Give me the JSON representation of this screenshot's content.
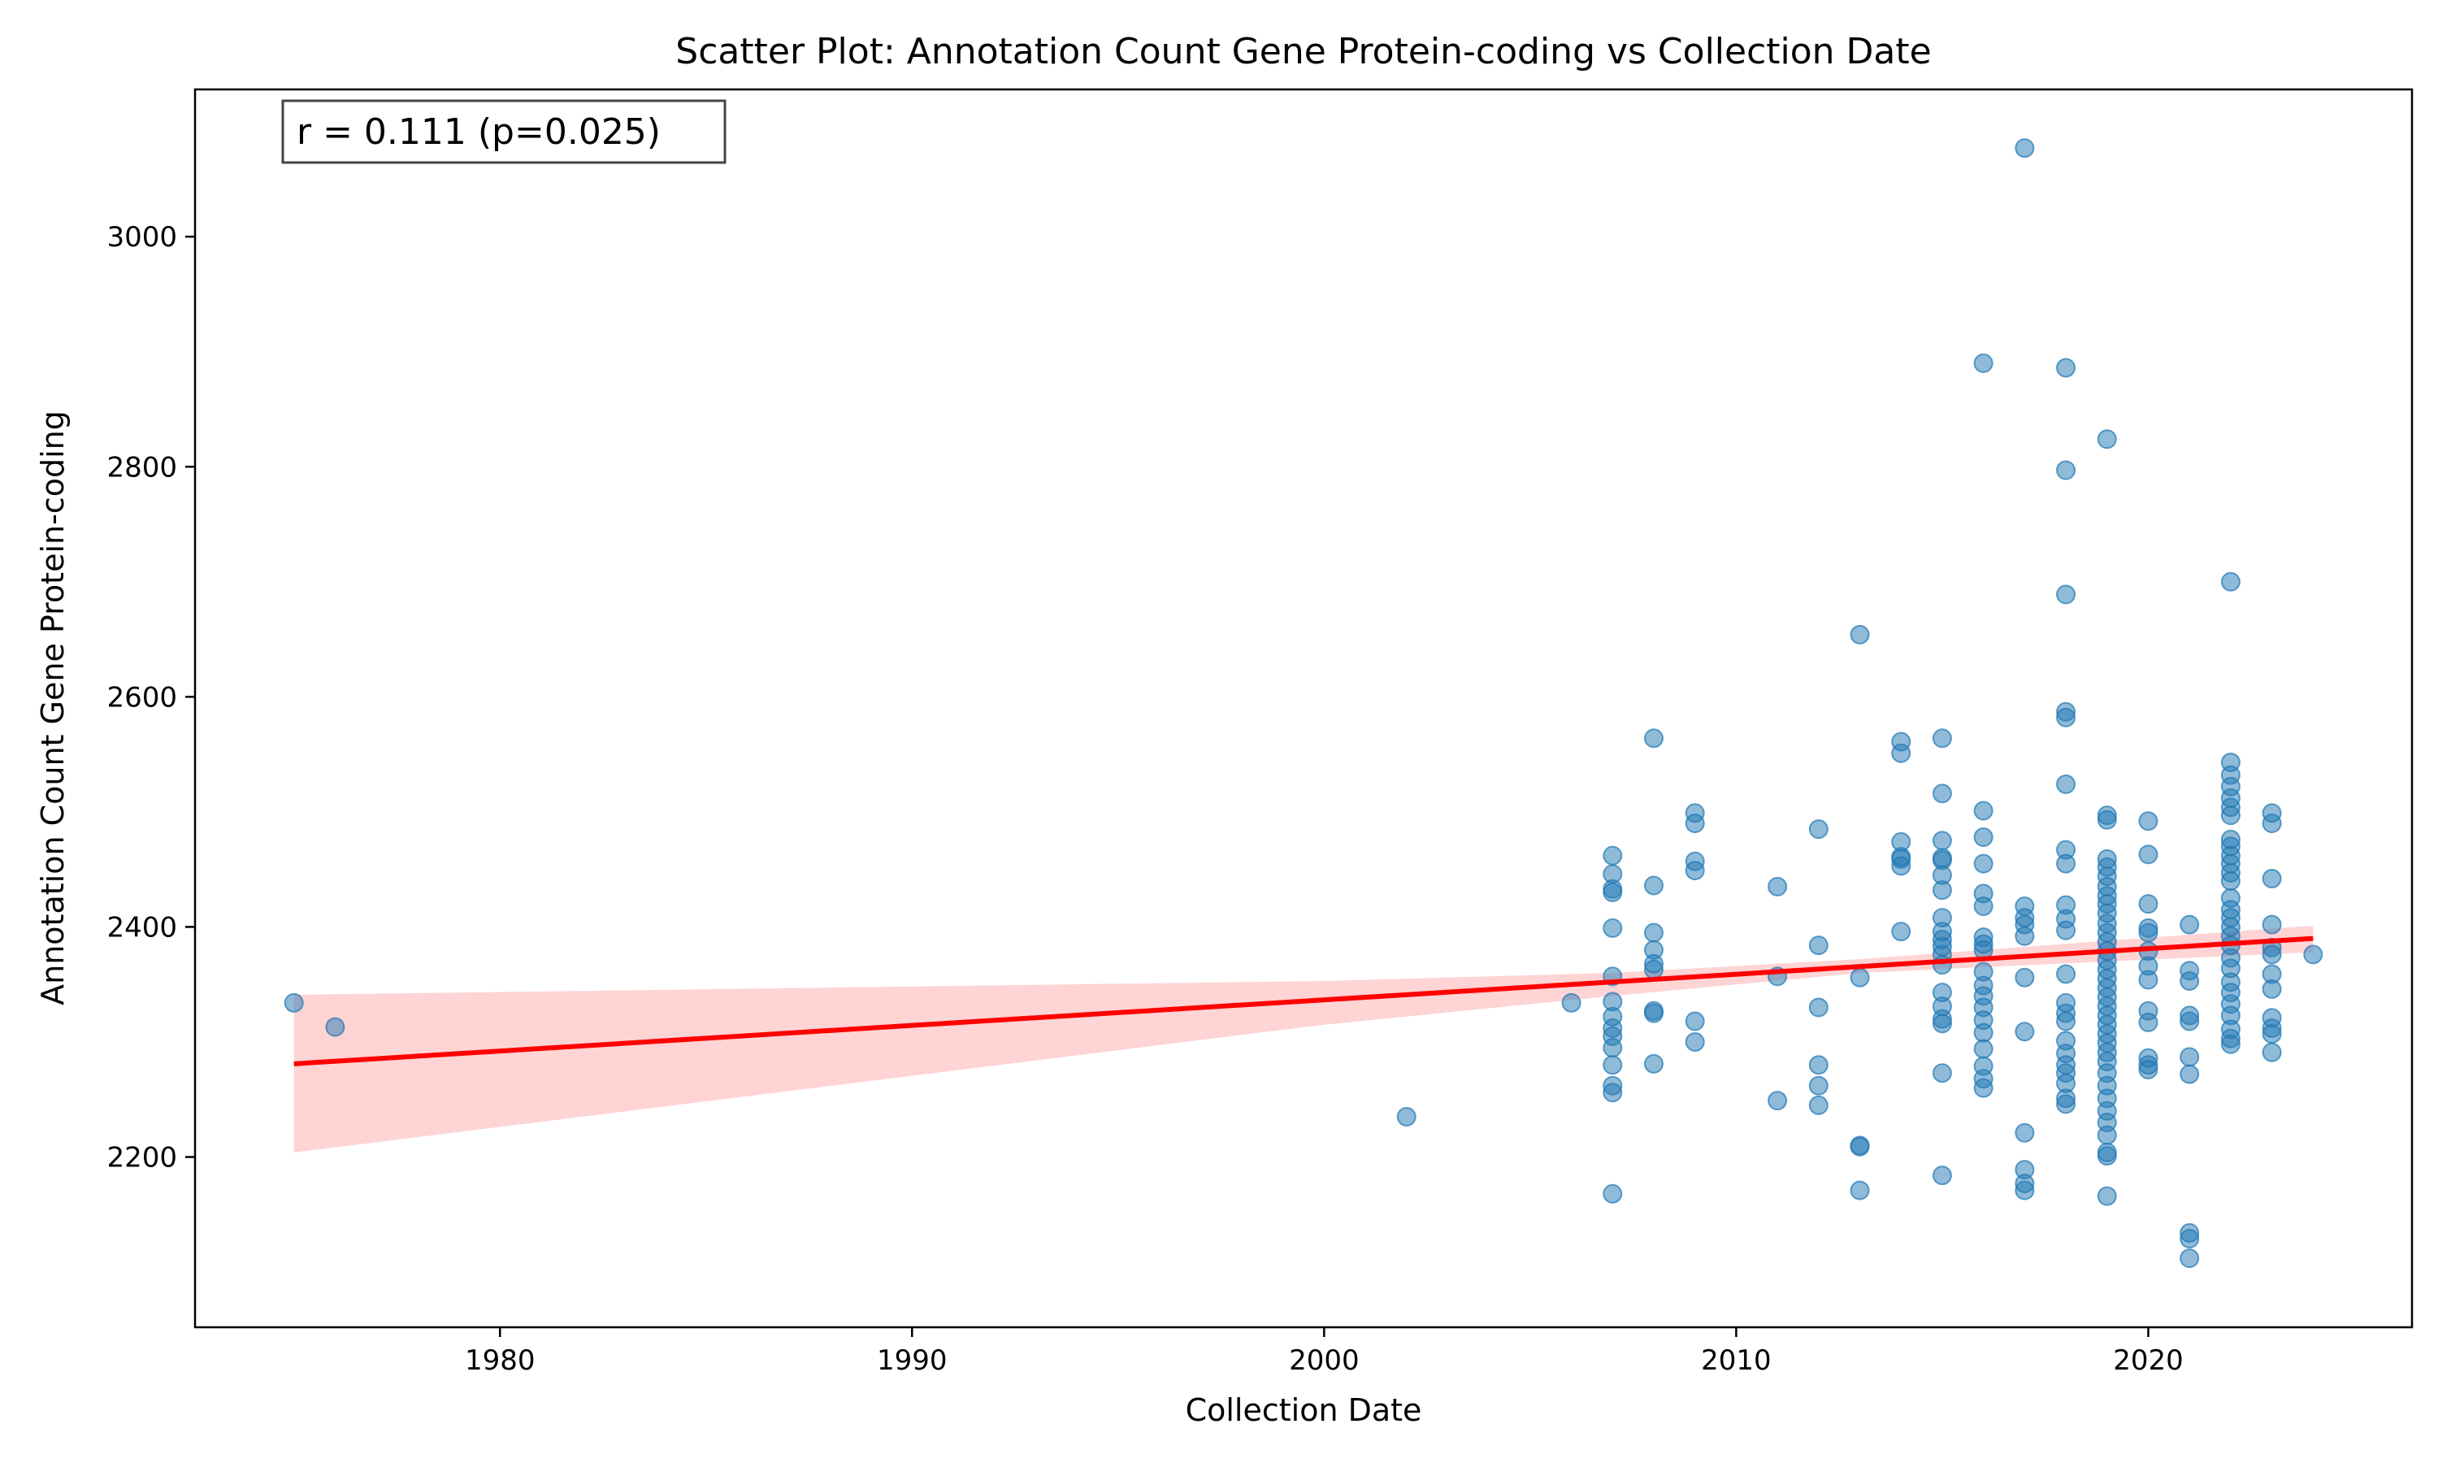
{
  "chart_data": {
    "type": "scatter",
    "title": "Scatter Plot: Annotation Count Gene Protein-coding vs Collection Date",
    "xlabel": "Collection Date",
    "ylabel": "Annotation Count Gene Protein-coding",
    "xlim": [
      1972.6,
      2026.4
    ],
    "ylim": [
      2052,
      3128
    ],
    "xticks": [
      1980,
      1990,
      2000,
      2010,
      2020
    ],
    "yticks": [
      2200,
      2400,
      2600,
      2800,
      3000
    ],
    "grid": false,
    "annotation": "r = 0.111 (p=0.025)",
    "point_color": "#1f77b4",
    "regression_color": "#ff0000",
    "confidence_color": "#ffcccc",
    "regression_line": {
      "x": [
        1975,
        2024
      ],
      "y": [
        2281,
        2390
      ]
    },
    "confidence_band": {
      "x": [
        1975,
        2000,
        2007,
        2013,
        2019,
        2024
      ],
      "lower": [
        2204,
        2315,
        2340,
        2360,
        2370,
        2378
      ],
      "upper": [
        2341,
        2353,
        2360,
        2372,
        2388,
        2401
      ]
    },
    "points": [
      {
        "x": 1975,
        "y": 2334
      },
      {
        "x": 1976,
        "y": 2313
      },
      {
        "x": 2002,
        "y": 2235
      },
      {
        "x": 2006,
        "y": 2334
      },
      {
        "x": 2007,
        "y": 2462
      },
      {
        "x": 2007,
        "y": 2446
      },
      {
        "x": 2007,
        "y": 2433
      },
      {
        "x": 2007,
        "y": 2430
      },
      {
        "x": 2007,
        "y": 2399
      },
      {
        "x": 2007,
        "y": 2357
      },
      {
        "x": 2007,
        "y": 2335
      },
      {
        "x": 2007,
        "y": 2322
      },
      {
        "x": 2007,
        "y": 2312
      },
      {
        "x": 2007,
        "y": 2305
      },
      {
        "x": 2007,
        "y": 2295
      },
      {
        "x": 2007,
        "y": 2280
      },
      {
        "x": 2007,
        "y": 2262
      },
      {
        "x": 2007,
        "y": 2256
      },
      {
        "x": 2007,
        "y": 2168
      },
      {
        "x": 2008,
        "y": 2564
      },
      {
        "x": 2008,
        "y": 2436
      },
      {
        "x": 2008,
        "y": 2395
      },
      {
        "x": 2008,
        "y": 2380
      },
      {
        "x": 2008,
        "y": 2368
      },
      {
        "x": 2008,
        "y": 2363
      },
      {
        "x": 2008,
        "y": 2327
      },
      {
        "x": 2008,
        "y": 2325
      },
      {
        "x": 2008,
        "y": 2281
      },
      {
        "x": 2009,
        "y": 2499
      },
      {
        "x": 2009,
        "y": 2490
      },
      {
        "x": 2009,
        "y": 2457
      },
      {
        "x": 2009,
        "y": 2449
      },
      {
        "x": 2009,
        "y": 2318
      },
      {
        "x": 2009,
        "y": 2300
      },
      {
        "x": 2011,
        "y": 2435
      },
      {
        "x": 2011,
        "y": 2357
      },
      {
        "x": 2011,
        "y": 2249
      },
      {
        "x": 2012,
        "y": 2485
      },
      {
        "x": 2012,
        "y": 2384
      },
      {
        "x": 2012,
        "y": 2330
      },
      {
        "x": 2012,
        "y": 2280
      },
      {
        "x": 2012,
        "y": 2262
      },
      {
        "x": 2012,
        "y": 2245
      },
      {
        "x": 2013,
        "y": 2654
      },
      {
        "x": 2013,
        "y": 2356
      },
      {
        "x": 2013,
        "y": 2210
      },
      {
        "x": 2013,
        "y": 2209
      },
      {
        "x": 2013,
        "y": 2171
      },
      {
        "x": 2014,
        "y": 2561
      },
      {
        "x": 2014,
        "y": 2551
      },
      {
        "x": 2014,
        "y": 2474
      },
      {
        "x": 2014,
        "y": 2461
      },
      {
        "x": 2014,
        "y": 2459
      },
      {
        "x": 2014,
        "y": 2453
      },
      {
        "x": 2014,
        "y": 2396
      },
      {
        "x": 2015,
        "y": 2564
      },
      {
        "x": 2015,
        "y": 2516
      },
      {
        "x": 2015,
        "y": 2475
      },
      {
        "x": 2015,
        "y": 2460
      },
      {
        "x": 2015,
        "y": 2458
      },
      {
        "x": 2015,
        "y": 2445
      },
      {
        "x": 2015,
        "y": 2432
      },
      {
        "x": 2015,
        "y": 2408
      },
      {
        "x": 2015,
        "y": 2396
      },
      {
        "x": 2015,
        "y": 2389
      },
      {
        "x": 2015,
        "y": 2383
      },
      {
        "x": 2015,
        "y": 2376
      },
      {
        "x": 2015,
        "y": 2367
      },
      {
        "x": 2015,
        "y": 2343
      },
      {
        "x": 2015,
        "y": 2331
      },
      {
        "x": 2015,
        "y": 2320
      },
      {
        "x": 2015,
        "y": 2316
      },
      {
        "x": 2015,
        "y": 2273
      },
      {
        "x": 2015,
        "y": 2184
      },
      {
        "x": 2016,
        "y": 2890
      },
      {
        "x": 2016,
        "y": 2501
      },
      {
        "x": 2016,
        "y": 2478
      },
      {
        "x": 2016,
        "y": 2455
      },
      {
        "x": 2016,
        "y": 2429
      },
      {
        "x": 2016,
        "y": 2418
      },
      {
        "x": 2016,
        "y": 2391
      },
      {
        "x": 2016,
        "y": 2385
      },
      {
        "x": 2016,
        "y": 2380
      },
      {
        "x": 2016,
        "y": 2361
      },
      {
        "x": 2016,
        "y": 2349
      },
      {
        "x": 2016,
        "y": 2340
      },
      {
        "x": 2016,
        "y": 2330
      },
      {
        "x": 2016,
        "y": 2319
      },
      {
        "x": 2016,
        "y": 2308
      },
      {
        "x": 2016,
        "y": 2294
      },
      {
        "x": 2016,
        "y": 2279
      },
      {
        "x": 2016,
        "y": 2268
      },
      {
        "x": 2016,
        "y": 2260
      },
      {
        "x": 2017,
        "y": 3077
      },
      {
        "x": 2017,
        "y": 2418
      },
      {
        "x": 2017,
        "y": 2408
      },
      {
        "x": 2017,
        "y": 2402
      },
      {
        "x": 2017,
        "y": 2392
      },
      {
        "x": 2017,
        "y": 2356
      },
      {
        "x": 2017,
        "y": 2309
      },
      {
        "x": 2017,
        "y": 2221
      },
      {
        "x": 2017,
        "y": 2189
      },
      {
        "x": 2017,
        "y": 2177
      },
      {
        "x": 2017,
        "y": 2171
      },
      {
        "x": 2018,
        "y": 2886
      },
      {
        "x": 2018,
        "y": 2797
      },
      {
        "x": 2018,
        "y": 2689
      },
      {
        "x": 2018,
        "y": 2587
      },
      {
        "x": 2018,
        "y": 2582
      },
      {
        "x": 2018,
        "y": 2524
      },
      {
        "x": 2018,
        "y": 2467
      },
      {
        "x": 2018,
        "y": 2455
      },
      {
        "x": 2018,
        "y": 2419
      },
      {
        "x": 2018,
        "y": 2407
      },
      {
        "x": 2018,
        "y": 2397
      },
      {
        "x": 2018,
        "y": 2359
      },
      {
        "x": 2018,
        "y": 2334
      },
      {
        "x": 2018,
        "y": 2325
      },
      {
        "x": 2018,
        "y": 2318
      },
      {
        "x": 2018,
        "y": 2301
      },
      {
        "x": 2018,
        "y": 2290
      },
      {
        "x": 2018,
        "y": 2280
      },
      {
        "x": 2018,
        "y": 2273
      },
      {
        "x": 2018,
        "y": 2264
      },
      {
        "x": 2018,
        "y": 2251
      },
      {
        "x": 2018,
        "y": 2246
      },
      {
        "x": 2019,
        "y": 2824
      },
      {
        "x": 2019,
        "y": 2497
      },
      {
        "x": 2019,
        "y": 2493
      },
      {
        "x": 2019,
        "y": 2459
      },
      {
        "x": 2019,
        "y": 2452
      },
      {
        "x": 2019,
        "y": 2444
      },
      {
        "x": 2019,
        "y": 2435
      },
      {
        "x": 2019,
        "y": 2427
      },
      {
        "x": 2019,
        "y": 2420
      },
      {
        "x": 2019,
        "y": 2412
      },
      {
        "x": 2019,
        "y": 2403
      },
      {
        "x": 2019,
        "y": 2395
      },
      {
        "x": 2019,
        "y": 2387
      },
      {
        "x": 2019,
        "y": 2379
      },
      {
        "x": 2019,
        "y": 2371
      },
      {
        "x": 2019,
        "y": 2363
      },
      {
        "x": 2019,
        "y": 2355
      },
      {
        "x": 2019,
        "y": 2347
      },
      {
        "x": 2019,
        "y": 2339
      },
      {
        "x": 2019,
        "y": 2331
      },
      {
        "x": 2019,
        "y": 2323
      },
      {
        "x": 2019,
        "y": 2315
      },
      {
        "x": 2019,
        "y": 2307
      },
      {
        "x": 2019,
        "y": 2299
      },
      {
        "x": 2019,
        "y": 2291
      },
      {
        "x": 2019,
        "y": 2283
      },
      {
        "x": 2019,
        "y": 2273
      },
      {
        "x": 2019,
        "y": 2262
      },
      {
        "x": 2019,
        "y": 2251
      },
      {
        "x": 2019,
        "y": 2240
      },
      {
        "x": 2019,
        "y": 2230
      },
      {
        "x": 2019,
        "y": 2219
      },
      {
        "x": 2019,
        "y": 2204
      },
      {
        "x": 2019,
        "y": 2201
      },
      {
        "x": 2019,
        "y": 2166
      },
      {
        "x": 2020,
        "y": 2492
      },
      {
        "x": 2020,
        "y": 2463
      },
      {
        "x": 2020,
        "y": 2420
      },
      {
        "x": 2020,
        "y": 2399
      },
      {
        "x": 2020,
        "y": 2395
      },
      {
        "x": 2020,
        "y": 2379
      },
      {
        "x": 2020,
        "y": 2366
      },
      {
        "x": 2020,
        "y": 2354
      },
      {
        "x": 2020,
        "y": 2327
      },
      {
        "x": 2020,
        "y": 2317
      },
      {
        "x": 2020,
        "y": 2286
      },
      {
        "x": 2020,
        "y": 2280
      },
      {
        "x": 2020,
        "y": 2276
      },
      {
        "x": 2021,
        "y": 2402
      },
      {
        "x": 2021,
        "y": 2362
      },
      {
        "x": 2021,
        "y": 2353
      },
      {
        "x": 2021,
        "y": 2323
      },
      {
        "x": 2021,
        "y": 2318
      },
      {
        "x": 2021,
        "y": 2287
      },
      {
        "x": 2021,
        "y": 2272
      },
      {
        "x": 2021,
        "y": 2134
      },
      {
        "x": 2021,
        "y": 2129
      },
      {
        "x": 2021,
        "y": 2112
      },
      {
        "x": 2022,
        "y": 2700
      },
      {
        "x": 2022,
        "y": 2543
      },
      {
        "x": 2022,
        "y": 2532
      },
      {
        "x": 2022,
        "y": 2522
      },
      {
        "x": 2022,
        "y": 2512
      },
      {
        "x": 2022,
        "y": 2504
      },
      {
        "x": 2022,
        "y": 2497
      },
      {
        "x": 2022,
        "y": 2476
      },
      {
        "x": 2022,
        "y": 2470
      },
      {
        "x": 2022,
        "y": 2462
      },
      {
        "x": 2022,
        "y": 2455
      },
      {
        "x": 2022,
        "y": 2447
      },
      {
        "x": 2022,
        "y": 2440
      },
      {
        "x": 2022,
        "y": 2425
      },
      {
        "x": 2022,
        "y": 2415
      },
      {
        "x": 2022,
        "y": 2408
      },
      {
        "x": 2022,
        "y": 2400
      },
      {
        "x": 2022,
        "y": 2392
      },
      {
        "x": 2022,
        "y": 2384
      },
      {
        "x": 2022,
        "y": 2373
      },
      {
        "x": 2022,
        "y": 2364
      },
      {
        "x": 2022,
        "y": 2352
      },
      {
        "x": 2022,
        "y": 2343
      },
      {
        "x": 2022,
        "y": 2333
      },
      {
        "x": 2022,
        "y": 2323
      },
      {
        "x": 2022,
        "y": 2311
      },
      {
        "x": 2022,
        "y": 2303
      },
      {
        "x": 2022,
        "y": 2298
      },
      {
        "x": 2023,
        "y": 2499
      },
      {
        "x": 2023,
        "y": 2490
      },
      {
        "x": 2023,
        "y": 2442
      },
      {
        "x": 2023,
        "y": 2402
      },
      {
        "x": 2023,
        "y": 2382
      },
      {
        "x": 2023,
        "y": 2376
      },
      {
        "x": 2023,
        "y": 2359
      },
      {
        "x": 2023,
        "y": 2346
      },
      {
        "x": 2023,
        "y": 2321
      },
      {
        "x": 2023,
        "y": 2312
      },
      {
        "x": 2023,
        "y": 2307
      },
      {
        "x": 2023,
        "y": 2291
      },
      {
        "x": 2024,
        "y": 2376
      }
    ]
  }
}
